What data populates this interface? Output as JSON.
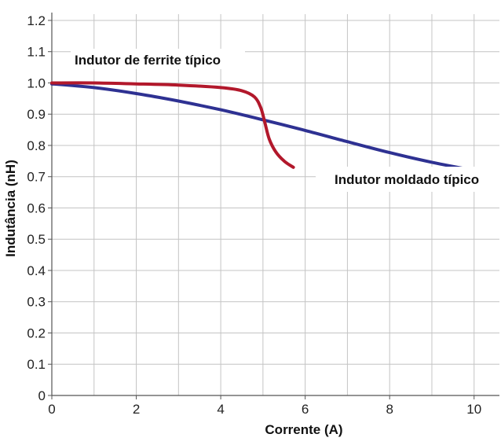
{
  "chart_data": {
    "type": "line",
    "xlabel": "Corrente (A)",
    "ylabel": "Indutância (nH)",
    "xlim": [
      0,
      10.6
    ],
    "ylim": [
      0,
      1.22
    ],
    "x_ticks": [
      0,
      2,
      4,
      6,
      8,
      10
    ],
    "y_ticks": [
      0,
      0.1,
      0.2,
      0.3,
      0.4,
      0.5,
      0.6,
      0.7,
      0.8,
      0.9,
      1.0,
      1.1,
      1.2
    ],
    "x_tick_labels": [
      "0",
      "2",
      "4",
      "6",
      "8",
      "10"
    ],
    "y_tick_labels": [
      "0",
      "0.1",
      "0.2",
      "0.3",
      "0.4",
      "0.5",
      "0.6",
      "0.7",
      "0.8",
      "0.9",
      "1.0",
      "1.1",
      "1.2"
    ],
    "grid": true,
    "legend": "none",
    "series": [
      {
        "name": "Indutor de ferrite típico",
        "color": "#b2182b",
        "x": [
          0,
          1,
          2,
          3,
          4,
          4.5,
          4.8,
          4.95,
          5.05,
          5.15,
          5.3,
          5.5,
          5.72
        ],
        "y": [
          1.0,
          1.0,
          0.997,
          0.993,
          0.985,
          0.975,
          0.955,
          0.92,
          0.87,
          0.82,
          0.78,
          0.75,
          0.73
        ]
      },
      {
        "name": "Indutor moldado típico",
        "color": "#2e3192",
        "x": [
          0,
          1,
          2,
          3,
          4,
          5,
          6,
          7,
          8,
          9,
          10
        ],
        "y": [
          0.997,
          0.985,
          0.966,
          0.942,
          0.914,
          0.882,
          0.848,
          0.812,
          0.777,
          0.746,
          0.72
        ]
      }
    ],
    "annotations": [
      {
        "text": "Indutor de ferrite típico",
        "series": 0
      },
      {
        "text": "Indutor moldado típico",
        "series": 1
      }
    ]
  }
}
